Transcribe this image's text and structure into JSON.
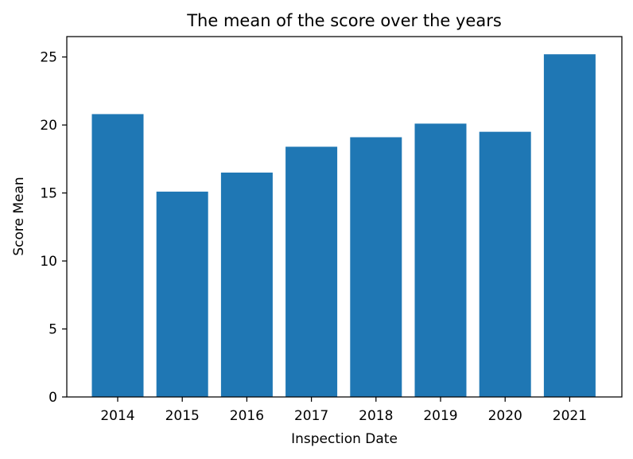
{
  "chart_data": {
    "type": "bar",
    "title": "The mean of the score over the years",
    "xlabel": "Inspection Date",
    "ylabel": "Score Mean",
    "categories": [
      "2014",
      "2015",
      "2016",
      "2017",
      "2018",
      "2019",
      "2020",
      "2021"
    ],
    "values": [
      20.8,
      15.1,
      16.5,
      18.4,
      19.1,
      20.1,
      19.5,
      25.2
    ],
    "ylim": [
      0,
      26.5
    ],
    "yticks": [
      0,
      5,
      10,
      15,
      20,
      25
    ],
    "bar_color": "#1f77b4",
    "grid": false,
    "legend": "none"
  }
}
